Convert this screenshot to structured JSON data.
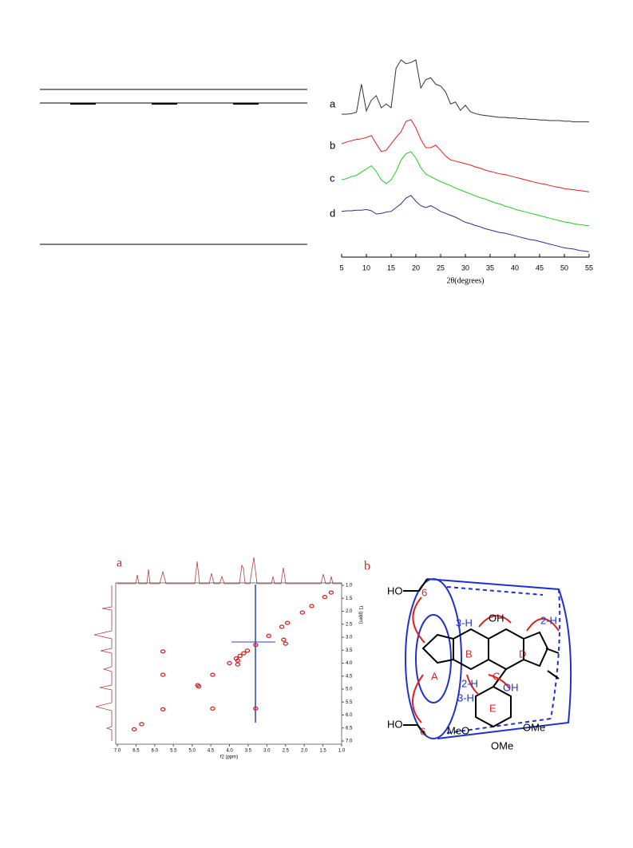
{
  "chart_data": [
    {
      "type": "line",
      "xlabel": "2θ(degrees)",
      "xlim": [
        5,
        55
      ],
      "xticks": [
        5,
        10,
        15,
        20,
        25,
        30,
        35,
        40,
        45,
        50,
        55
      ],
      "x": [
        5,
        6,
        7,
        8,
        9,
        10,
        11,
        12,
        13,
        14,
        15,
        16,
        17,
        18,
        19,
        20,
        21,
        22,
        23,
        24,
        25,
        26,
        27,
        28,
        29,
        30,
        31,
        32,
        33,
        34,
        35,
        36,
        37,
        38,
        39,
        40,
        41,
        42,
        43,
        44,
        45,
        46,
        47,
        48,
        49,
        50,
        51,
        52,
        53,
        54,
        55
      ],
      "series": [
        {
          "name": "a",
          "color": "#333333",
          "values": [
            15,
            15,
            16,
            18,
            62,
            20,
            37,
            44,
            25,
            31,
            25,
            87,
            100,
            94,
            96,
            100,
            56,
            69,
            72,
            62,
            59,
            50,
            31,
            34,
            21,
            29,
            19,
            16,
            14,
            13,
            12,
            11,
            10,
            10,
            9,
            9,
            8,
            8,
            7,
            7,
            6,
            6,
            5,
            5,
            5,
            4,
            4,
            3,
            3,
            3,
            3
          ]
        },
        {
          "name": "b",
          "color": "#e02020",
          "values": [
            81,
            84,
            86,
            88,
            89,
            91,
            94,
            81,
            69,
            71,
            81,
            91,
            100,
            116,
            119,
            106,
            88,
            75,
            75,
            79,
            71,
            62,
            56,
            54,
            52,
            50,
            48,
            45,
            43,
            40,
            38,
            36,
            34,
            33,
            31,
            29,
            27,
            25,
            23,
            21,
            19,
            18,
            16,
            14,
            13,
            11,
            10,
            9,
            8,
            7,
            6
          ]
        },
        {
          "name": "c",
          "color": "#22cc22",
          "values": [
            81,
            83,
            86,
            88,
            93,
            98,
            103,
            94,
            81,
            75,
            81,
            94,
            112,
            122,
            125,
            115,
            100,
            90,
            86,
            82,
            78,
            75,
            72,
            68,
            65,
            62,
            59,
            56,
            53,
            51,
            48,
            45,
            43,
            40,
            38,
            35,
            33,
            31,
            29,
            27,
            25,
            23,
            21,
            19,
            17,
            15,
            14,
            12,
            11,
            10,
            9
          ]
        },
        {
          "name": "d",
          "color": "#303090",
          "values": [
            69,
            70,
            70,
            71,
            71,
            72,
            70,
            65,
            66,
            68,
            69,
            75,
            81,
            90,
            94,
            85,
            78,
            75,
            78,
            74,
            69,
            66,
            63,
            60,
            56,
            52,
            50,
            47,
            45,
            42,
            40,
            38,
            36,
            35,
            33,
            31,
            29,
            27,
            25,
            24,
            22,
            20,
            18,
            16,
            14,
            12,
            11,
            10,
            8,
            7,
            6
          ]
        }
      ]
    },
    {
      "type": "scatter",
      "panel_label": "a",
      "xlabel": "f2 (ppm)",
      "ylabel": "f1 (ppm)",
      "color": "#d42020",
      "xlim": [
        7.0,
        1.0
      ],
      "ylim": [
        1.0,
        7.0
      ],
      "xticks": [
        {
          "value": 7,
          "label": "7.0"
        },
        {
          "value": 6.5,
          "label": "6.5"
        },
        {
          "value": 6,
          "label": "6.0"
        },
        {
          "value": 5.5,
          "label": "5.5"
        },
        {
          "value": 5,
          "label": "5.0"
        },
        {
          "value": 4.5,
          "label": "4.5"
        },
        {
          "value": 4,
          "label": "4.0"
        },
        {
          "value": 3.5,
          "label": "3.5"
        },
        {
          "value": 3,
          "label": "3.0"
        },
        {
          "value": 2.5,
          "label": "2.5"
        },
        {
          "value": 2,
          "label": "2.0"
        },
        {
          "value": 1.5,
          "label": "1.5"
        },
        {
          "value": 1,
          "label": "1.0"
        }
      ],
      "yticks": [
        {
          "value": 1,
          "label": "1.0"
        },
        {
          "value": 1.5,
          "label": "1.5"
        },
        {
          "value": 2,
          "label": "2.0"
        },
        {
          "value": 2.5,
          "label": "2.5"
        },
        {
          "value": 3,
          "label": "3.0"
        },
        {
          "value": 3.5,
          "label": "3.5"
        },
        {
          "value": 4,
          "label": "4.0"
        },
        {
          "value": 4.5,
          "label": "4.5"
        },
        {
          "value": 5,
          "label": "5.0"
        },
        {
          "value": 5.5,
          "label": "5.5"
        },
        {
          "value": 6,
          "label": "6.0"
        },
        {
          "value": 6.5,
          "label": "6.5"
        },
        {
          "value": 7,
          "label": "7.0"
        }
      ],
      "x": [
        6.55,
        6.35,
        5.78,
        4.85,
        4.45,
        4.0,
        3.82,
        3.72,
        3.62,
        3.52,
        3.3,
        2.95,
        2.6,
        2.45,
        2.05,
        1.8,
        1.45,
        1.28,
        5.78,
        5.78,
        4.82,
        4.45,
        3.78,
        3.78,
        3.3,
        2.55,
        2.5
      ],
      "y": [
        6.55,
        6.35,
        5.78,
        4.85,
        4.45,
        4.0,
        3.82,
        3.72,
        3.62,
        3.52,
        3.3,
        2.95,
        2.6,
        2.45,
        2.05,
        1.8,
        1.45,
        1.28,
        3.55,
        4.45,
        4.9,
        5.75,
        3.9,
        4.05,
        5.75,
        3.1,
        3.25
      ]
    }
  ],
  "structure": {
    "panel_label": "b",
    "labels": [
      "HO",
      "6",
      "3-H",
      "OH",
      "2-H",
      "A",
      "B",
      "C",
      "D",
      "E",
      "2-H",
      "OH",
      "3-H",
      "HO",
      "6",
      "MeO",
      "OMe",
      "OMe"
    ]
  }
}
